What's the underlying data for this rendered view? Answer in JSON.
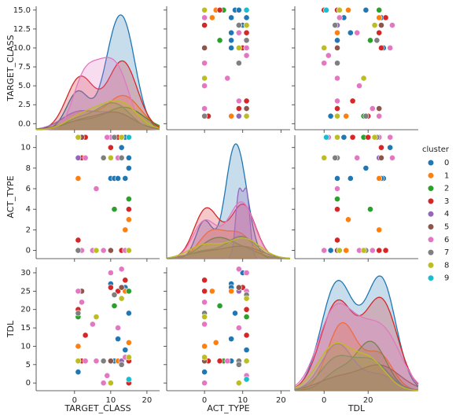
{
  "chart_data": {
    "type": "pairplot",
    "legend_title": "cluster",
    "legend_position": "right",
    "variables": [
      {
        "name": "TARGET_CLASS",
        "xlim": [
          -10.6,
          23.5
        ],
        "ylim": [
          -0.8,
          15.5
        ],
        "xticks": [
          0,
          10,
          20
        ],
        "yticks": [
          {
            "value": 0,
            "label": "0.0"
          },
          {
            "value": 2.5,
            "label": "2.5"
          },
          {
            "value": 5,
            "label": "5.0"
          },
          {
            "value": 7.5,
            "label": "7.5"
          },
          {
            "value": 10,
            "label": "10.0"
          },
          {
            "value": 12.5,
            "label": "12.5"
          },
          {
            "value": 15,
            "label": "15.0"
          }
        ]
      },
      {
        "name": "ACT_TYPE",
        "xlim": [
          -9.9,
          22.4
        ],
        "ylim": [
          -0.8,
          11.2
        ],
        "xticks": [
          0,
          10,
          20
        ],
        "yticks": [
          0,
          2,
          4,
          6,
          8,
          10
        ]
      },
      {
        "name": "TDL",
        "xlim": [
          -13.3,
          42.8
        ],
        "ylim": [
          -2.1,
          31.5
        ],
        "xticks": [
          0,
          20
        ],
        "yticks": [
          0,
          5,
          10,
          15,
          20,
          25,
          30
        ]
      }
    ],
    "series": [
      {
        "name": "0",
        "color": "#1f77b4",
        "columns": [
          [
            1,
            1,
            10,
            11,
            13,
            14,
            15,
            15,
            12,
            10,
            1,
            15,
            14,
            10
          ],
          [
            7,
            9,
            7,
            7,
            10,
            11,
            8,
            0,
            7,
            10,
            0,
            9,
            7,
            0
          ],
          [
            6,
            25,
            27,
            6,
            26,
            9,
            19,
            25,
            12,
            30,
            3,
            6,
            26,
            0
          ]
        ]
      },
      {
        "name": "1",
        "color": "#ff7f0e",
        "columns": [
          [
            1,
            13,
            15,
            14,
            1,
            12
          ],
          [
            7,
            11,
            3,
            2,
            0,
            9
          ],
          [
            25,
            6,
            11,
            25,
            10,
            6
          ]
        ]
      },
      {
        "name": "2",
        "color": "#2ca02c",
        "columns": [
          [
            15,
            1,
            11,
            15
          ],
          [
            5,
            11,
            4,
            0
          ],
          [
            6,
            18,
            21,
            25
          ]
        ]
      },
      {
        "name": "3",
        "color": "#d62728",
        "columns": [
          [
            1,
            3,
            15,
            13,
            1,
            12,
            15,
            10,
            2,
            14,
            1,
            13
          ],
          [
            0,
            11,
            4,
            9,
            1,
            11,
            0,
            10,
            9,
            0,
            11,
            0
          ],
          [
            25,
            13,
            6,
            31,
            6,
            25,
            0,
            26,
            6,
            28,
            20,
            6
          ]
        ]
      },
      {
        "name": "4",
        "color": "#9467bd",
        "columns": [
          [
            1,
            13,
            1,
            10
          ],
          [
            11,
            9,
            9,
            11
          ],
          [
            6,
            6,
            25,
            6
          ]
        ]
      },
      {
        "name": "5",
        "color": "#8c564b",
        "columns": [
          [
            10,
            13,
            2
          ],
          [
            0,
            9,
            11
          ],
          [
            6,
            26,
            25
          ]
        ]
      },
      {
        "name": "6",
        "color": "#e377c2",
        "columns": [
          [
            1,
            6,
            8,
            13,
            10,
            2,
            12,
            9,
            14,
            5,
            3
          ],
          [
            11,
            6,
            0,
            9,
            11,
            0,
            9,
            11,
            0,
            0,
            9
          ],
          [
            25,
            6,
            0,
            31,
            30,
            22,
            15,
            2,
            7,
            16,
            6
          ]
        ]
      },
      {
        "name": "7",
        "color": "#7f7f7f",
        "columns": [
          [
            8,
            13,
            1,
            11
          ],
          [
            9,
            9,
            0,
            11
          ],
          [
            6,
            5,
            19,
            24
          ]
        ]
      },
      {
        "name": "8",
        "color": "#bcbd22",
        "columns": [
          [
            10,
            6,
            1,
            13,
            15
          ],
          [
            9,
            0,
            11,
            11,
            0
          ],
          [
            0,
            18,
            6,
            23,
            7
          ]
        ]
      },
      {
        "name": "9",
        "color": "#17becf",
        "columns": [
          [
            15
          ],
          [
            11
          ],
          [
            1
          ]
        ]
      }
    ]
  }
}
